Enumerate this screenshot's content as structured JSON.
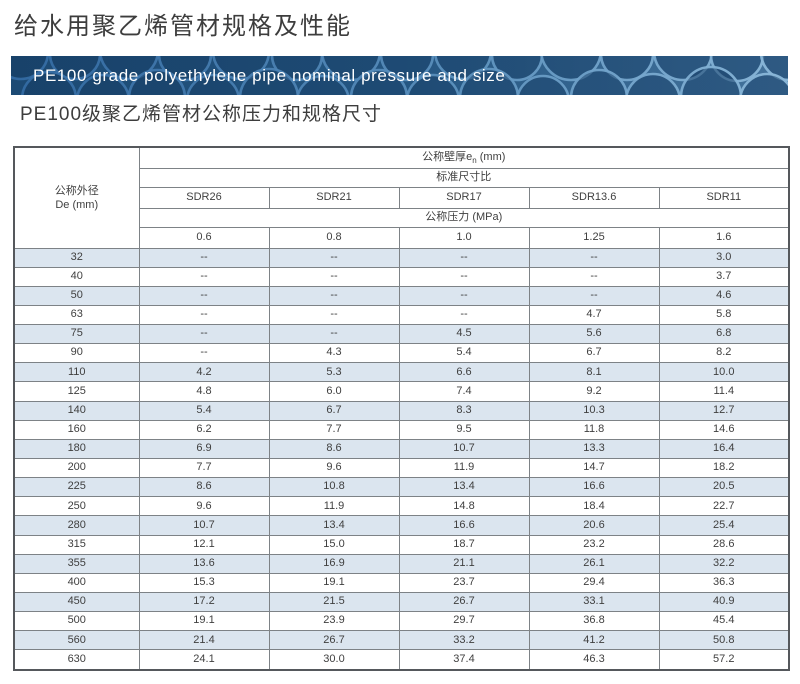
{
  "header": {
    "title": "给水用聚乙烯管材规格及性能",
    "banner": "PE100 grade polyethylene pipe nominal pressure and size",
    "subtitle": "PE100级聚乙烯管材公称压力和规格尺寸"
  },
  "table": {
    "corner": {
      "line1": "公称外径",
      "line2": "De (mm)"
    },
    "wall_header": {
      "prefix": "公称壁厚e",
      "sub": "n",
      "suffix": " (mm)"
    },
    "sdr_title": "标准尺寸比",
    "sdr_labels": [
      "SDR26",
      "SDR21",
      "SDR17",
      "SDR13.6",
      "SDR11"
    ],
    "pressure_title": "公称压力 (MPa)",
    "pressure_values": [
      "0.6",
      "0.8",
      "1.0",
      "1.25",
      "1.6"
    ],
    "rows": [
      {
        "de": "32",
        "values": [
          "--",
          "--",
          "--",
          "--",
          "3.0"
        ]
      },
      {
        "de": "40",
        "values": [
          "--",
          "--",
          "--",
          "--",
          "3.7"
        ]
      },
      {
        "de": "50",
        "values": [
          "--",
          "--",
          "--",
          "--",
          "4.6"
        ]
      },
      {
        "de": "63",
        "values": [
          "--",
          "--",
          "--",
          "4.7",
          "5.8"
        ]
      },
      {
        "de": "75",
        "values": [
          "--",
          "--",
          "4.5",
          "5.6",
          "6.8"
        ]
      },
      {
        "de": "90",
        "values": [
          "--",
          "4.3",
          "5.4",
          "6.7",
          "8.2"
        ]
      },
      {
        "de": "110",
        "values": [
          "4.2",
          "5.3",
          "6.6",
          "8.1",
          "10.0"
        ]
      },
      {
        "de": "125",
        "values": [
          "4.8",
          "6.0",
          "7.4",
          "9.2",
          "11.4"
        ]
      },
      {
        "de": "140",
        "values": [
          "5.4",
          "6.7",
          "8.3",
          "10.3",
          "12.7"
        ]
      },
      {
        "de": "160",
        "values": [
          "6.2",
          "7.7",
          "9.5",
          "11.8",
          "14.6"
        ]
      },
      {
        "de": "180",
        "values": [
          "6.9",
          "8.6",
          "10.7",
          "13.3",
          "16.4"
        ]
      },
      {
        "de": "200",
        "values": [
          "7.7",
          "9.6",
          "11.9",
          "14.7",
          "18.2"
        ]
      },
      {
        "de": "225",
        "values": [
          "8.6",
          "10.8",
          "13.4",
          "16.6",
          "20.5"
        ]
      },
      {
        "de": "250",
        "values": [
          "9.6",
          "11.9",
          "14.8",
          "18.4",
          "22.7"
        ]
      },
      {
        "de": "280",
        "values": [
          "10.7",
          "13.4",
          "16.6",
          "20.6",
          "25.4"
        ]
      },
      {
        "de": "315",
        "values": [
          "12.1",
          "15.0",
          "18.7",
          "23.2",
          "28.6"
        ]
      },
      {
        "de": "355",
        "values": [
          "13.6",
          "16.9",
          "21.1",
          "26.1",
          "32.2"
        ]
      },
      {
        "de": "400",
        "values": [
          "15.3",
          "19.1",
          "23.7",
          "29.4",
          "36.3"
        ]
      },
      {
        "de": "450",
        "values": [
          "17.2",
          "21.5",
          "26.7",
          "33.1",
          "40.9"
        ]
      },
      {
        "de": "500",
        "values": [
          "19.1",
          "23.9",
          "29.7",
          "36.8",
          "45.4"
        ]
      },
      {
        "de": "560",
        "values": [
          "21.4",
          "26.7",
          "33.2",
          "41.2",
          "50.8"
        ]
      },
      {
        "de": "630",
        "values": [
          "24.1",
          "30.0",
          "37.4",
          "46.3",
          "57.2"
        ]
      }
    ]
  },
  "colors": {
    "banner_blue": "#1f4e79",
    "row_alt_blue": "#dbe5ef",
    "text_dark": "#3f3f3f"
  }
}
